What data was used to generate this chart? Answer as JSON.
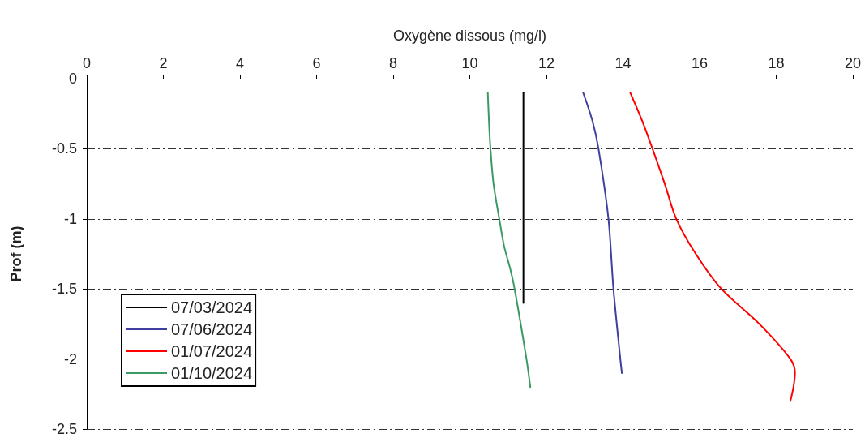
{
  "chart_data": {
    "type": "line",
    "xlabel": "Oxygène dissous (mg/l)",
    "ylabel": "Prof (m)",
    "xlim": [
      0,
      20
    ],
    "xticks": [
      0,
      2,
      4,
      6,
      8,
      10,
      12,
      14,
      16,
      18,
      20
    ],
    "ylim": [
      -2.5,
      0
    ],
    "yticks": [
      -2.5,
      -2,
      -1.5,
      -1,
      -0.5,
      0
    ],
    "grid": "y",
    "legend": "bottom left",
    "marker": "none",
    "line_style": "solid",
    "series": [
      {
        "name": "07/03/2024",
        "color": "#000000",
        "x": [
          11.4,
          11.4
        ],
        "values": [
          -0.1,
          -1.6
        ]
      },
      {
        "name": "07/06/2024",
        "color": "#3f3f9f",
        "x": [
          12.96,
          13.2,
          13.36,
          13.62,
          13.75,
          13.93,
          13.97
        ],
        "values": [
          -0.1,
          -0.3,
          -0.5,
          -1,
          -1.5,
          -2,
          -2.1
        ]
      },
      {
        "name": "01/07/2024",
        "color": "#ff0000",
        "x": [
          14.19,
          14.5,
          14.77,
          15.09,
          15.39,
          15.9,
          16.57,
          17.56,
          18.37,
          18.49,
          18.45,
          18.37
        ],
        "values": [
          -0.1,
          -0.3,
          -0.5,
          -0.75,
          -1,
          -1.25,
          -1.5,
          -1.75,
          -2,
          -2.1,
          -2.2,
          -2.3
        ]
      },
      {
        "name": "01/10/2024",
        "color": "#3a9a64",
        "x": [
          10.47,
          10.5,
          10.54,
          10.62,
          10.77,
          10.9,
          11.05,
          11.17,
          11.48,
          11.58
        ],
        "values": [
          -0.1,
          -0.3,
          -0.5,
          -0.75,
          -1,
          -1.2,
          -1.35,
          -1.5,
          -2,
          -2.2
        ]
      }
    ]
  }
}
